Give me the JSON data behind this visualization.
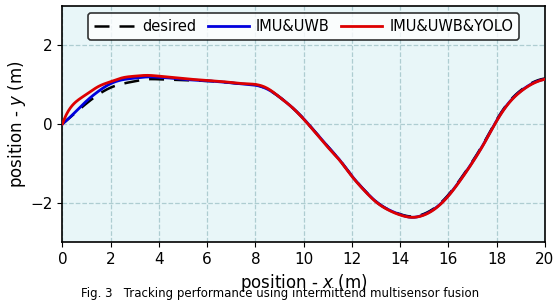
{
  "xlabel": "position - $x$ (m)",
  "ylabel": "position - $y$ (m)",
  "xlim": [
    0,
    20
  ],
  "ylim": [
    -3,
    3
  ],
  "xticks": [
    0,
    2,
    4,
    6,
    8,
    10,
    12,
    14,
    16,
    18,
    20
  ],
  "yticks": [
    -2,
    0,
    2
  ],
  "background_color": "#e8f6f8",
  "grid_color": "#aecdd1",
  "legend_labels": [
    "desired",
    "IMU&UWB",
    "IMU&UWB&YOLO"
  ],
  "desired_color": "#000000",
  "imu_uwb_color": "#0000dd",
  "imu_uwb_yolo_color": "#dd0000",
  "line_width": 2.0,
  "desired_lw": 1.8,
  "caption": "Fig. 3   Tracking performance using intermittend multisensor fusion",
  "desired_x": [
    0,
    1,
    2,
    3,
    3.5,
    4,
    5,
    6,
    7,
    7.5,
    8,
    8.5,
    9,
    9.5,
    10,
    10.5,
    11,
    11.5,
    12,
    12.5,
    13,
    13.5,
    14,
    14.5,
    15,
    15.5,
    16,
    16.5,
    17,
    17.5,
    18,
    18.5,
    19,
    19.5,
    20
  ],
  "desired_y": [
    0,
    0.52,
    0.92,
    1.08,
    1.13,
    1.13,
    1.11,
    1.09,
    1.04,
    1.01,
    0.99,
    0.88,
    0.68,
    0.43,
    0.13,
    -0.22,
    -0.57,
    -0.92,
    -1.32,
    -1.67,
    -1.97,
    -2.17,
    -2.29,
    -2.35,
    -2.28,
    -2.1,
    -1.8,
    -1.4,
    -0.95,
    -0.45,
    0.1,
    0.55,
    0.85,
    1.05,
    1.15
  ],
  "imu_uwb_x": [
    0,
    0.5,
    1,
    1.5,
    2,
    2.5,
    3,
    3.5,
    4,
    4.5,
    5,
    6,
    7,
    7.5,
    8,
    8.5,
    9,
    9.5,
    10,
    10.5,
    11,
    11.5,
    12,
    12.5,
    13,
    13.5,
    14,
    14.5,
    15,
    15.5,
    16,
    16.5,
    17,
    17.5,
    18,
    18.5,
    19,
    19.5,
    20
  ],
  "imu_uwb_y": [
    0,
    0.28,
    0.58,
    0.83,
    1.02,
    1.12,
    1.16,
    1.19,
    1.18,
    1.16,
    1.13,
    1.09,
    1.04,
    1.01,
    0.98,
    0.88,
    0.68,
    0.43,
    0.13,
    -0.22,
    -0.57,
    -0.92,
    -1.32,
    -1.67,
    -1.97,
    -2.17,
    -2.3,
    -2.37,
    -2.3,
    -2.12,
    -1.82,
    -1.42,
    -0.97,
    -0.47,
    0.08,
    0.53,
    0.83,
    1.03,
    1.13
  ],
  "imu_uwb_yolo_x": [
    0,
    0.3,
    0.6,
    1,
    1.5,
    2,
    2.5,
    3,
    3.5,
    4,
    4.5,
    5,
    6,
    7,
    7.5,
    8,
    8.5,
    9,
    9.5,
    10,
    10.5,
    11,
    11.5,
    12,
    12.5,
    13,
    13.5,
    14,
    14.5,
    15,
    15.5,
    16,
    16.5,
    17,
    17.5,
    18,
    18.5,
    19,
    19.5,
    20
  ],
  "imu_uwb_yolo_y": [
    0,
    0.38,
    0.58,
    0.75,
    0.95,
    1.07,
    1.17,
    1.21,
    1.23,
    1.21,
    1.18,
    1.15,
    1.1,
    1.05,
    1.02,
    1.0,
    0.9,
    0.68,
    0.43,
    0.12,
    -0.23,
    -0.59,
    -0.93,
    -1.33,
    -1.68,
    -1.98,
    -2.18,
    -2.31,
    -2.37,
    -2.31,
    -2.13,
    -1.83,
    -1.43,
    -0.98,
    -0.48,
    0.07,
    0.52,
    0.82,
    1.02,
    1.13
  ]
}
